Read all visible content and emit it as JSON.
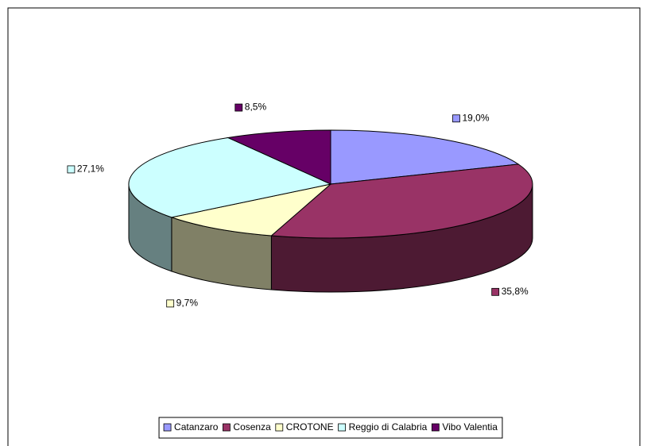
{
  "chart_data": {
    "type": "pie",
    "categories": [
      "Catanzaro",
      "Cosenza",
      "CROTONE",
      "Reggio di Calabria",
      "Vibo Valentia"
    ],
    "values": [
      19.0,
      35.8,
      9.7,
      27.1,
      8.5
    ],
    "value_labels": [
      "19,0%",
      "35,8%",
      "9,7%",
      "27,1%",
      "8,5%"
    ],
    "colors": [
      "#9999ff",
      "#993366",
      "#ffffcc",
      "#ccffff",
      "#660066"
    ],
    "legend": "bottom"
  }
}
